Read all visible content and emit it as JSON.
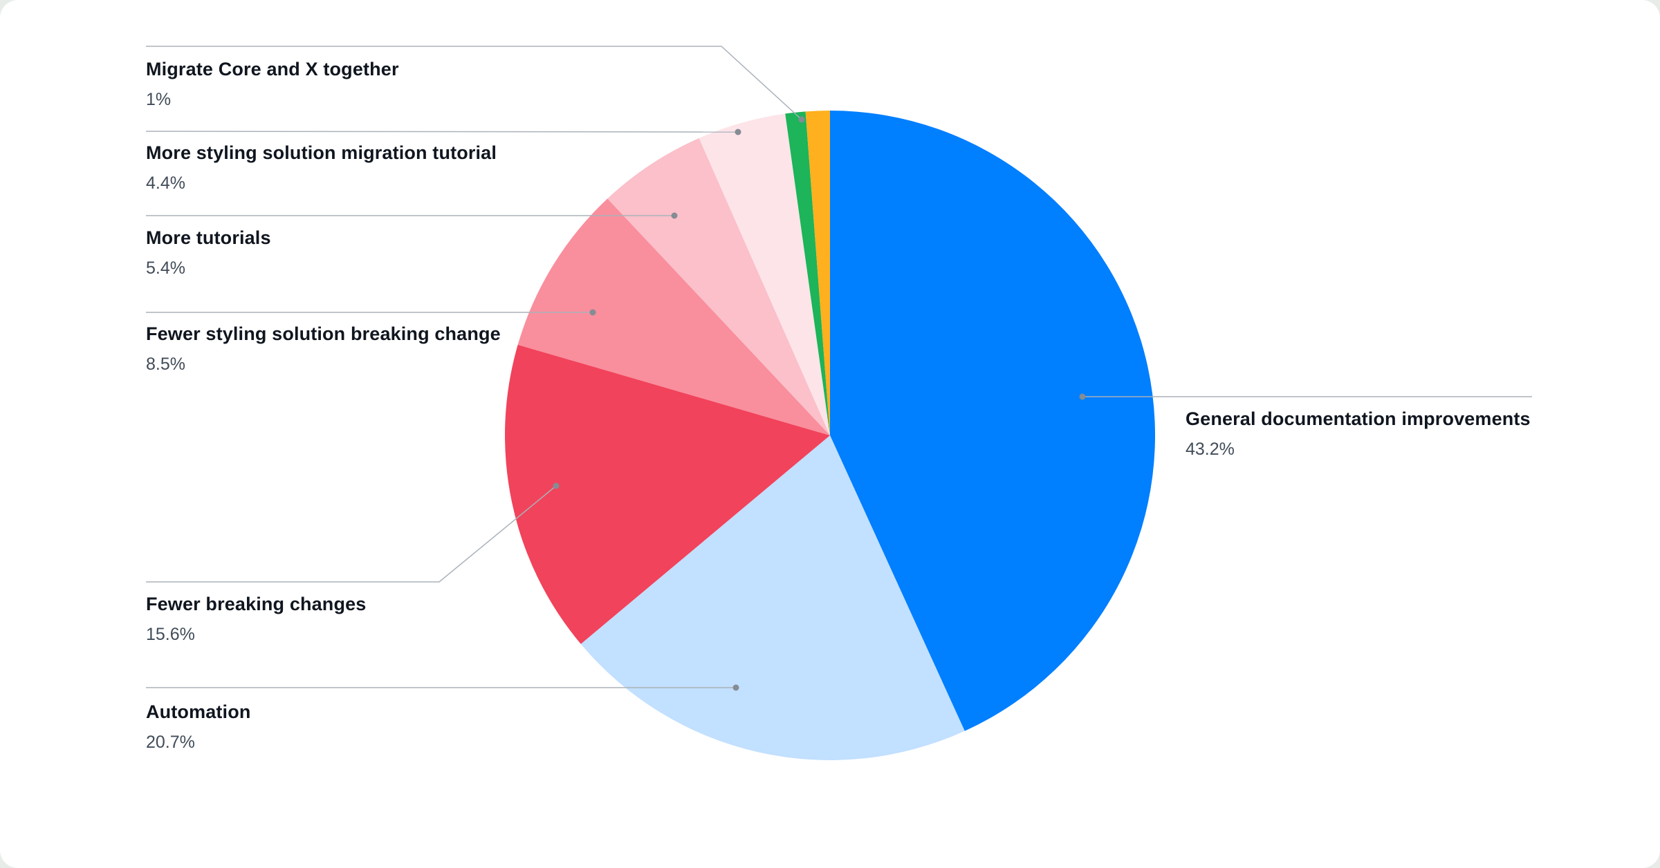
{
  "page": {
    "background_color": "#e7ece8",
    "card_background_color": "#ffffff",
    "leader_line_color": "#aab2ba",
    "leader_dot_color": "#858c94",
    "label_text_color": "#10161f",
    "percent_text_color": "#414c58"
  },
  "chart_data": {
    "type": "pie",
    "direction": "clockwise",
    "start_angle_deg": 0,
    "legend_position": "none",
    "label_style": "callout-leader-lines",
    "slices": [
      {
        "label": "General documentation improvements",
        "pct_label": "43.2%",
        "value": 43.2,
        "color": "#007FFF"
      },
      {
        "label": "Automation",
        "pct_label": "20.7%",
        "value": 20.7,
        "color": "#C2E0FF"
      },
      {
        "label": "Fewer breaking changes",
        "pct_label": "15.6%",
        "value": 15.6,
        "color": "#F1435B"
      },
      {
        "label": "Fewer styling solution breaking change",
        "pct_label": "8.5%",
        "value": 8.5,
        "color": "#F98E9D"
      },
      {
        "label": "More tutorials",
        "pct_label": "5.4%",
        "value": 5.4,
        "color": "#FBC0CA"
      },
      {
        "label": "More styling solution migration tutorial",
        "pct_label": "4.4%",
        "value": 4.4,
        "color": "#FDE4E8"
      },
      {
        "label": "Migrate Core and X together",
        "pct_label": "1%",
        "value": 1.0,
        "color": "#1DB45A"
      },
      {
        "label": "",
        "pct_label": "",
        "value": 1.2,
        "color": "#FFB01E"
      }
    ]
  }
}
